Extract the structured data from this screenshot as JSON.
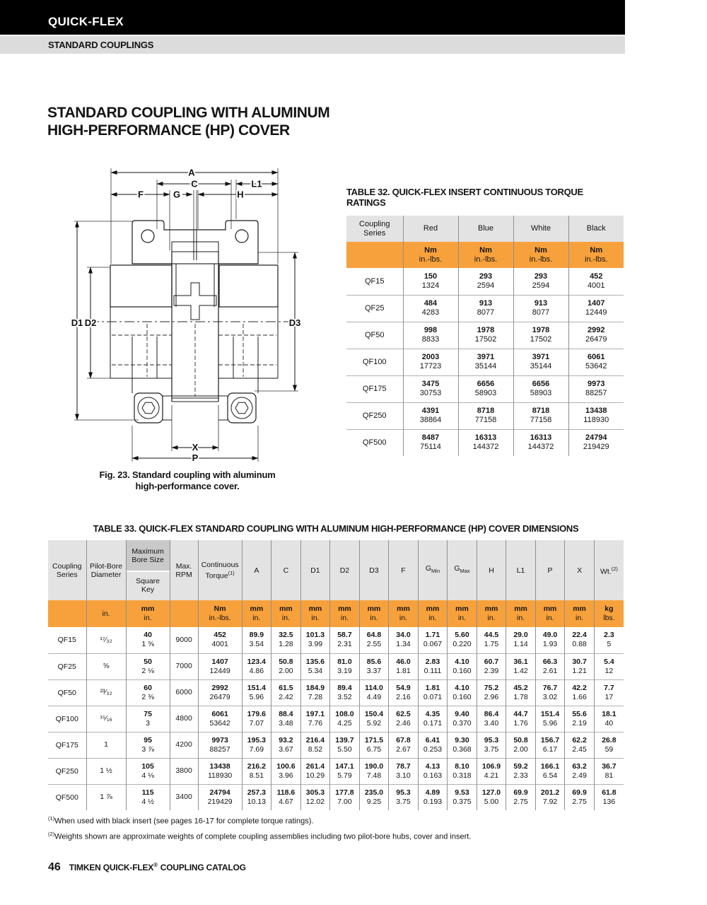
{
  "page": {
    "brand": "QUICK-FLEX",
    "section": "STANDARD COUPLINGS",
    "title_line1": "STANDARD COUPLING WITH ALUMINUM",
    "title_line2": "HIGH-PERFORMANCE (HP) COVER",
    "footnote1_sup": "(1)",
    "footnote1": "When used with black insert (see pages 16-17 for complete torque ratings).",
    "footnote2_sup": "(2)",
    "footnote2": "Weights shown are approximate weights of complete coupling assemblies including two pilot-bore hubs, cover and insert.",
    "page_number": "46",
    "footer_pre": "TIMKEN QUICK-FLEX",
    "footer_reg": "®",
    "footer_post": "COUPLING CATALOG"
  },
  "figure": {
    "caption_line1": "Fig. 23. Standard coupling with aluminum",
    "caption_line2": "high-performance cover.",
    "labels": {
      "A": "A",
      "C": "C",
      "L1": "L1",
      "F": "F",
      "G": "G",
      "H": "H",
      "D1": "D1",
      "D2": "D2",
      "D3": "D3",
      "X": "X",
      "P": "P"
    }
  },
  "table32": {
    "title": "TABLE 32. QUICK-FLEX INSERT CONTINUOUS TORQUE RATINGS",
    "series_header": "Coupling Series",
    "columns": [
      "Red",
      "Blue",
      "White",
      "Black"
    ],
    "unit_top": "Nm",
    "unit_bottom": "in.-lbs.",
    "rows": [
      {
        "series": "QF15",
        "values": [
          [
            "150",
            "1324"
          ],
          [
            "293",
            "2594"
          ],
          [
            "293",
            "2594"
          ],
          [
            "452",
            "4001"
          ]
        ]
      },
      {
        "series": "QF25",
        "values": [
          [
            "484",
            "4283"
          ],
          [
            "913",
            "8077"
          ],
          [
            "913",
            "8077"
          ],
          [
            "1407",
            "12449"
          ]
        ]
      },
      {
        "series": "QF50",
        "values": [
          [
            "998",
            "8833"
          ],
          [
            "1978",
            "17502"
          ],
          [
            "1978",
            "17502"
          ],
          [
            "2992",
            "26479"
          ]
        ]
      },
      {
        "series": "QF100",
        "values": [
          [
            "2003",
            "17723"
          ],
          [
            "3971",
            "35144"
          ],
          [
            "3971",
            "35144"
          ],
          [
            "6061",
            "53642"
          ]
        ]
      },
      {
        "series": "QF175",
        "values": [
          [
            "3475",
            "30753"
          ],
          [
            "6656",
            "58903"
          ],
          [
            "6656",
            "58903"
          ],
          [
            "9973",
            "88257"
          ]
        ]
      },
      {
        "series": "QF250",
        "values": [
          [
            "4391",
            "38864"
          ],
          [
            "8718",
            "77158"
          ],
          [
            "8718",
            "77158"
          ],
          [
            "13438",
            "118930"
          ]
        ]
      },
      {
        "series": "QF500",
        "values": [
          [
            "8487",
            "75114"
          ],
          [
            "16313",
            "144372"
          ],
          [
            "16313",
            "144372"
          ],
          [
            "24794",
            "219429"
          ]
        ]
      }
    ]
  },
  "table33": {
    "title": "TABLE 33. QUICK-FLEX STANDARD COUPLING WITH ALUMINUM HIGH-PERFORMANCE (HP) COVER DIMENSIONS",
    "headers": {
      "series": "Coupling Series",
      "pilot_bore": "Pilot-Bore Diameter",
      "max_bore": "Maximum Bore Size",
      "square_key": "Square Key",
      "max_rpm": "Max. RPM",
      "torque": "Continuous Torque",
      "torque_sup": "(1)"
    },
    "dim_headers": [
      {
        "t": "A"
      },
      {
        "t": "C"
      },
      {
        "t": "D1"
      },
      {
        "t": "D2"
      },
      {
        "t": "D3"
      },
      {
        "t": "F"
      },
      {
        "t": "G",
        "sub": "Min"
      },
      {
        "t": "G",
        "sub": "Max"
      },
      {
        "t": "H"
      },
      {
        "t": "L1"
      },
      {
        "t": "P"
      },
      {
        "t": "X"
      },
      {
        "t": "Wt.",
        "sup": "(2)"
      }
    ],
    "units": {
      "pilot_bore": "in.",
      "max_bore": [
        "mm",
        "in."
      ],
      "torque": [
        "Nm",
        "in.-lbs."
      ],
      "dim": [
        "mm",
        "in."
      ],
      "wt": [
        "kg",
        "lbs."
      ]
    },
    "rows": [
      {
        "series": "QF15",
        "pilot_bore": "¹⁷⁄₃₂",
        "max_bore": [
          "40",
          "1 ⅝"
        ],
        "rpm": "9000",
        "torque": [
          "452",
          "4001"
        ],
        "dims": [
          [
            "89.9",
            "3.54"
          ],
          [
            "32.5",
            "1.28"
          ],
          [
            "101.3",
            "3.99"
          ],
          [
            "58.7",
            "2.31"
          ],
          [
            "64.8",
            "2.55"
          ],
          [
            "34.0",
            "1.34"
          ],
          [
            "1.71",
            "0.067"
          ],
          [
            "5.60",
            "0.220"
          ],
          [
            "44.5",
            "1.75"
          ],
          [
            "29.0",
            "1.14"
          ],
          [
            "49.0",
            "1.93"
          ],
          [
            "22.4",
            "0.88"
          ]
        ],
        "wt": [
          "2.3",
          "5"
        ]
      },
      {
        "series": "QF25",
        "pilot_bore": "⅝",
        "max_bore": [
          "50",
          "2 ⅛"
        ],
        "rpm": "7000",
        "torque": [
          "1407",
          "12449"
        ],
        "dims": [
          [
            "123.4",
            "4.86"
          ],
          [
            "50.8",
            "2.00"
          ],
          [
            "135.6",
            "5.34"
          ],
          [
            "81.0",
            "3.19"
          ],
          [
            "85.6",
            "3.37"
          ],
          [
            "46.0",
            "1.81"
          ],
          [
            "2.83",
            "0.111"
          ],
          [
            "4.10",
            "0.160"
          ],
          [
            "60.7",
            "2.39"
          ],
          [
            "36.1",
            "1.42"
          ],
          [
            "66.3",
            "2.61"
          ],
          [
            "30.7",
            "1.21"
          ]
        ],
        "wt": [
          "5.4",
          "12"
        ]
      },
      {
        "series": "QF50",
        "pilot_bore": "²³⁄₃₂",
        "max_bore": [
          "60",
          "2 ⅜"
        ],
        "rpm": "6000",
        "torque": [
          "2992",
          "26479"
        ],
        "dims": [
          [
            "151.4",
            "5.96"
          ],
          [
            "61.5",
            "2.42"
          ],
          [
            "184.9",
            "7.28"
          ],
          [
            "89.4",
            "3.52"
          ],
          [
            "114.0",
            "4.49"
          ],
          [
            "54.9",
            "2.16"
          ],
          [
            "1.81",
            "0.071"
          ],
          [
            "4.10",
            "0.160"
          ],
          [
            "75.2",
            "2.96"
          ],
          [
            "45.2",
            "1.78"
          ],
          [
            "76.7",
            "3.02"
          ],
          [
            "42.2",
            "1.66"
          ]
        ],
        "wt": [
          "7.7",
          "17"
        ]
      },
      {
        "series": "QF100",
        "pilot_bore": "¹⁵⁄₁₆",
        "max_bore": [
          "75",
          "3"
        ],
        "rpm": "4800",
        "torque": [
          "6061",
          "53642"
        ],
        "dims": [
          [
            "179.6",
            "7.07"
          ],
          [
            "88.4",
            "3.48"
          ],
          [
            "197.1",
            "7.76"
          ],
          [
            "108.0",
            "4.25"
          ],
          [
            "150.4",
            "5.92"
          ],
          [
            "62.5",
            "2.46"
          ],
          [
            "4.35",
            "0.171"
          ],
          [
            "9.40",
            "0.370"
          ],
          [
            "86.4",
            "3.40"
          ],
          [
            "44.7",
            "1.76"
          ],
          [
            "151.4",
            "5.96"
          ],
          [
            "55.6",
            "2.19"
          ]
        ],
        "wt": [
          "18.1",
          "40"
        ]
      },
      {
        "series": "QF175",
        "pilot_bore": "1",
        "max_bore": [
          "95",
          "3 ⅞"
        ],
        "rpm": "4200",
        "torque": [
          "9973",
          "88257"
        ],
        "dims": [
          [
            "195.3",
            "7.69"
          ],
          [
            "93.2",
            "3.67"
          ],
          [
            "216.4",
            "8.52"
          ],
          [
            "139.7",
            "5.50"
          ],
          [
            "171.5",
            "6.75"
          ],
          [
            "67.8",
            "2.67"
          ],
          [
            "6.41",
            "0.253"
          ],
          [
            "9.30",
            "0.368"
          ],
          [
            "95.3",
            "3.75"
          ],
          [
            "50.8",
            "2.00"
          ],
          [
            "156.7",
            "6.17"
          ],
          [
            "62.2",
            "2.45"
          ]
        ],
        "wt": [
          "26.8",
          "59"
        ]
      },
      {
        "series": "QF250",
        "pilot_bore": "1 ½",
        "max_bore": [
          "105",
          "4 ⅛"
        ],
        "rpm": "3800",
        "torque": [
          "13438",
          "118930"
        ],
        "dims": [
          [
            "216.2",
            "8.51"
          ],
          [
            "100.6",
            "3.96"
          ],
          [
            "261.4",
            "10.29"
          ],
          [
            "147.1",
            "5.79"
          ],
          [
            "190.0",
            "7.48"
          ],
          [
            "78.7",
            "3.10"
          ],
          [
            "4.13",
            "0.163"
          ],
          [
            "8.10",
            "0.318"
          ],
          [
            "106.9",
            "4.21"
          ],
          [
            "59.2",
            "2.33"
          ],
          [
            "166.1",
            "6.54"
          ],
          [
            "63.2",
            "2.49"
          ]
        ],
        "wt": [
          "36.7",
          "81"
        ]
      },
      {
        "series": "QF500",
        "pilot_bore": "1 ⅞",
        "max_bore": [
          "115",
          "4 ½"
        ],
        "rpm": "3400",
        "torque": [
          "24794",
          "219429"
        ],
        "dims": [
          [
            "257.3",
            "10.13"
          ],
          [
            "118.6",
            "4.67"
          ],
          [
            "305.3",
            "12.02"
          ],
          [
            "177.8",
            "7.00"
          ],
          [
            "235.0",
            "9.25"
          ],
          [
            "95.3",
            "3.75"
          ],
          [
            "4.89",
            "0.193"
          ],
          [
            "9.53",
            "0.375"
          ],
          [
            "127.0",
            "5.00"
          ],
          [
            "69.9",
            "2.75"
          ],
          [
            "201.2",
            "7.92"
          ],
          [
            "69.9",
            "2.75"
          ]
        ],
        "wt": [
          "61.8",
          "136"
        ]
      }
    ]
  }
}
